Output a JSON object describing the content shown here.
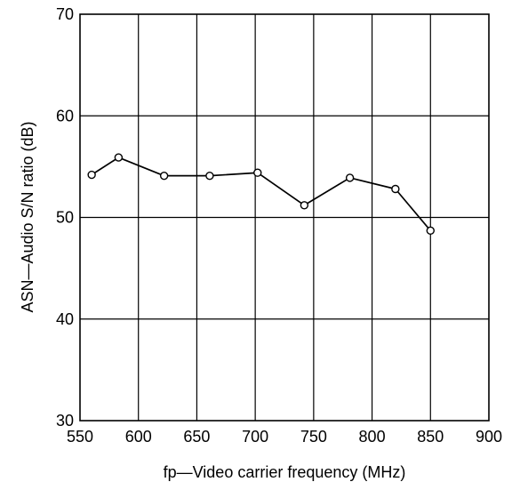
{
  "chart_data": {
    "type": "line",
    "xlabel": "fp—Video carrier frequency (MHz)",
    "ylabel": "ASN—Audio S/N ratio (dB)",
    "xlim": [
      550,
      900
    ],
    "ylim": [
      30,
      70
    ],
    "xticks": [
      550,
      600,
      650,
      700,
      750,
      800,
      850,
      900
    ],
    "yticks": [
      30,
      40,
      50,
      60,
      70
    ],
    "grid": true,
    "series": [
      {
        "color": "#000000",
        "x": [
          560,
          583,
          622,
          661,
          702,
          742,
          781,
          820,
          850
        ],
        "y": [
          54.2,
          55.9,
          54.1,
          54.1,
          54.4,
          51.2,
          53.9,
          52.8,
          48.7
        ]
      }
    ]
  }
}
